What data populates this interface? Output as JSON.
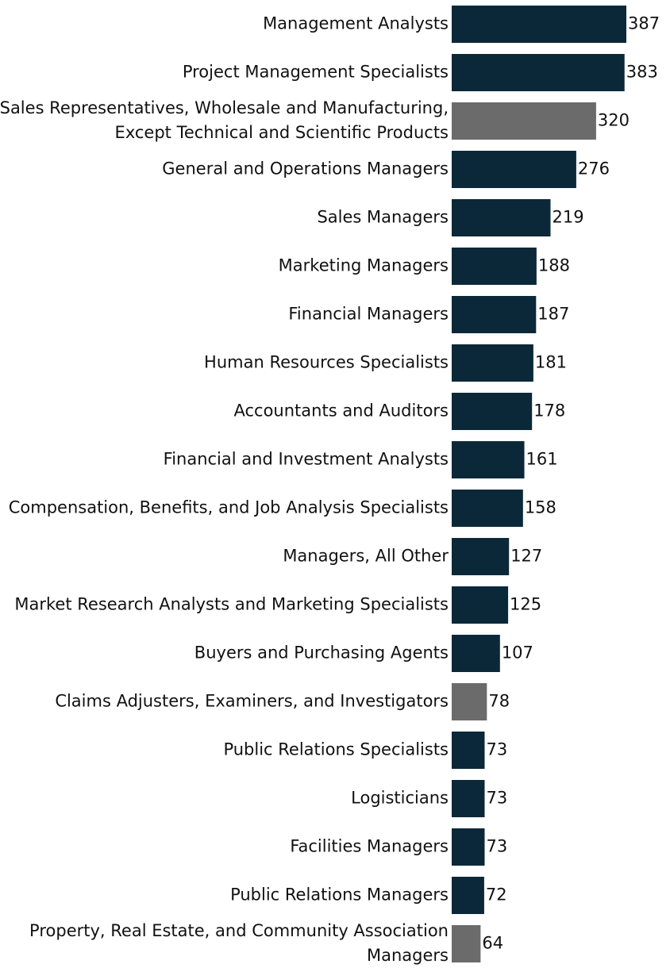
{
  "chart_data": {
    "type": "bar",
    "orientation": "horizontal",
    "title": "",
    "xlabel": "",
    "ylabel": "",
    "grid": false,
    "legend": "none",
    "colors": {
      "primary": "#0b2838",
      "highlight": "#6b6b6b"
    },
    "categories": [
      [
        "Management Analysts"
      ],
      [
        "Project Management Specialists"
      ],
      [
        "Sales Representatives, Wholesale and Manufacturing,",
        "Except Technical and Scientific Products"
      ],
      [
        "General and Operations Managers"
      ],
      [
        "Sales Managers"
      ],
      [
        "Marketing Managers"
      ],
      [
        "Financial Managers"
      ],
      [
        "Human Resources Specialists"
      ],
      [
        "Accountants and Auditors"
      ],
      [
        "Financial and Investment Analysts"
      ],
      [
        "Compensation, Benefits, and Job Analysis Specialists"
      ],
      [
        "Managers, All Other"
      ],
      [
        "Market Research Analysts and Marketing Specialists"
      ],
      [
        "Buyers and Purchasing Agents"
      ],
      [
        "Claims Adjusters, Examiners, and Investigators"
      ],
      [
        "Public Relations Specialists"
      ],
      [
        "Logisticians"
      ],
      [
        "Facilities Managers"
      ],
      [
        "Public Relations Managers"
      ],
      [
        "Property, Real Estate, and Community Association",
        "Managers"
      ]
    ],
    "values": [
      387,
      383,
      320,
      276,
      219,
      188,
      187,
      181,
      178,
      161,
      158,
      127,
      125,
      107,
      78,
      73,
      73,
      73,
      72,
      64
    ],
    "highlight": [
      false,
      false,
      true,
      false,
      false,
      false,
      false,
      false,
      false,
      false,
      false,
      false,
      false,
      false,
      true,
      false,
      false,
      false,
      false,
      true
    ],
    "xlim": [
      0,
      387
    ]
  }
}
